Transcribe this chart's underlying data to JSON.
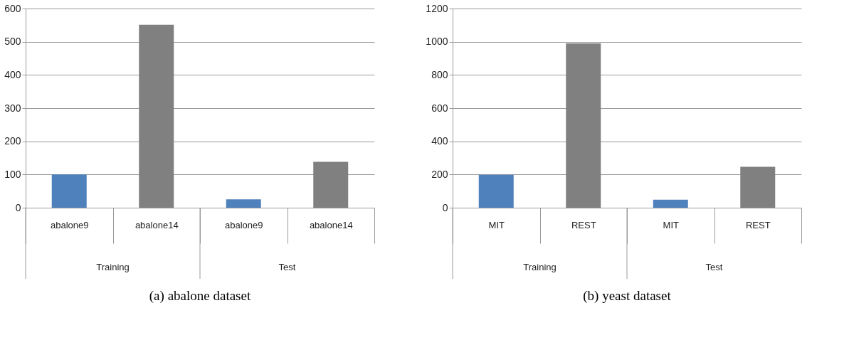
{
  "chart_data": [
    {
      "type": "bar",
      "title": "(a) abalone dataset",
      "categories": [
        "abalone9",
        "abalone14",
        "abalone9",
        "abalone14"
      ],
      "values": [
        100,
        551,
        25,
        138
      ],
      "colors": [
        "#4f81bd",
        "#808080",
        "#4f81bd",
        "#808080"
      ],
      "ylim": [
        0,
        600
      ],
      "yticks": [
        0,
        100,
        200,
        300,
        400,
        500,
        600
      ],
      "grid": "y",
      "annotations": [
        "Training",
        "Test"
      ]
    },
    {
      "type": "bar",
      "title": "(b) yeast dataset",
      "categories": [
        "MIT",
        "REST",
        "MIT",
        "REST"
      ],
      "values": [
        198,
        990,
        48,
        246
      ],
      "colors": [
        "#4f81bd",
        "#808080",
        "#4f81bd",
        "#808080"
      ],
      "ylim": [
        0,
        1200
      ],
      "yticks": [
        0,
        200,
        400,
        600,
        800,
        1000,
        1200
      ],
      "grid": "y",
      "annotations": [
        "Training",
        "Test"
      ]
    }
  ]
}
